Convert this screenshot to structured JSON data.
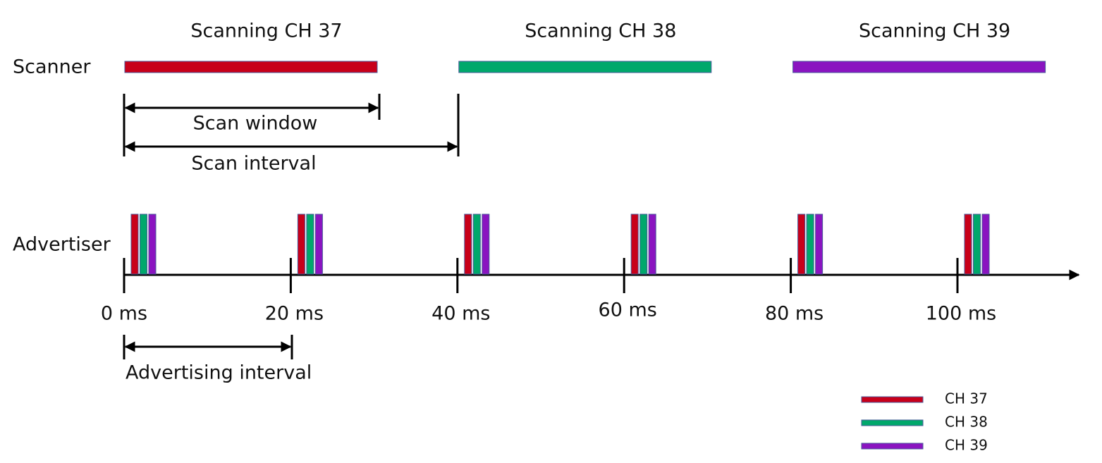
{
  "scanner": {
    "label": "Scanner",
    "windows": [
      "Scanning CH 37",
      "Scanning CH 38",
      "Scanning CH 39"
    ]
  },
  "advertiser": {
    "label": "Advertiser"
  },
  "timeline": {
    "ticks": [
      "0 ms",
      "20 ms",
      "40 ms",
      "60 ms",
      "80 ms",
      "100 ms"
    ]
  },
  "annotations": {
    "scan_window": "Scan window",
    "scan_interval": "Scan interval",
    "advertising_interval": "Advertising interval"
  },
  "legend": [
    {
      "name": "CH 37",
      "color": "#c8001a"
    },
    {
      "name": "CH 38",
      "color": "#00a86b"
    },
    {
      "name": "CH 39",
      "color": "#8a14c0"
    }
  ]
}
